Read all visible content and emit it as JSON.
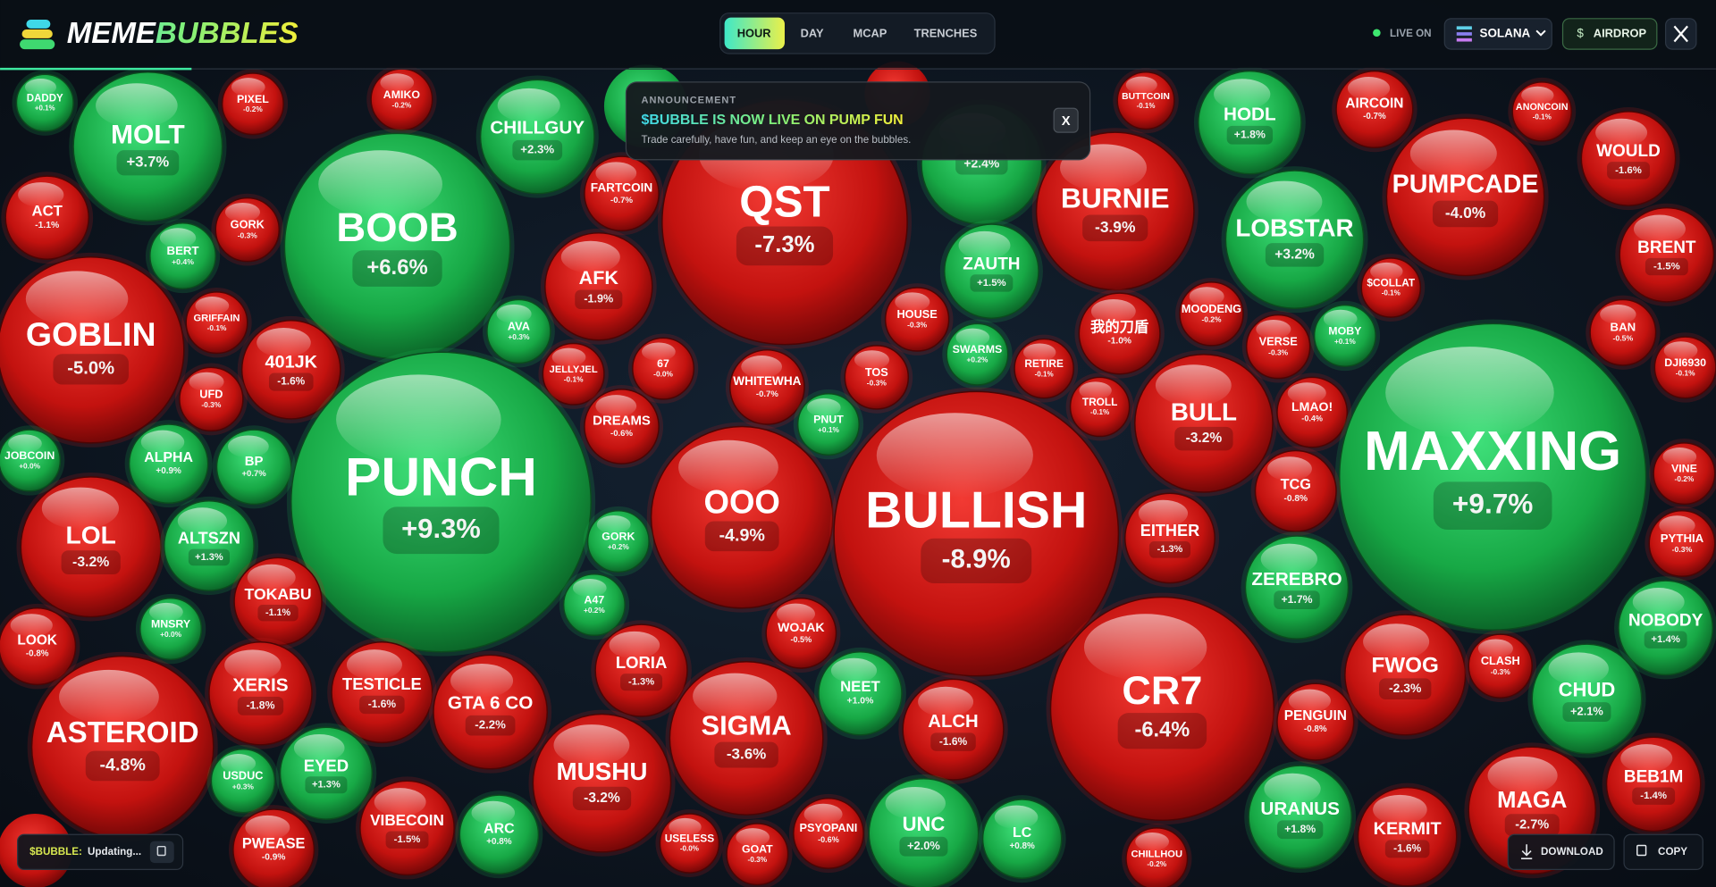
{
  "header": {
    "logo_left": "MEME",
    "logo_right": "BUBBLES",
    "tabs": [
      "HOUR",
      "DAY",
      "MCAP",
      "TRENCHES"
    ],
    "live": "LIVE ON",
    "chain": "SOLANA",
    "airdrop": "AIRDROP"
  },
  "announcement": {
    "label": "ANNOUNCEMENT",
    "title": "$BUBBLE IS NOW LIVE ON PUMP FUN",
    "text": "Trade carefully, have fun, and keep an eye on the bubbles.",
    "close": "X"
  },
  "bubbles": [
    {
      "name": "DADDY",
      "change": "+0.1%"
    },
    {
      "name": "MOLT",
      "change": "+3.7%"
    },
    {
      "name": "PIXEL",
      "change": "-0.2%"
    },
    {
      "name": "AMIKO",
      "change": "-0.2%"
    },
    {
      "name": "CHILLGUY",
      "change": "+2.3%"
    },
    {
      "name": "FARTCOIN",
      "change": "-0.7%"
    },
    {
      "name": "QST",
      "change": "-7.3%"
    },
    {
      "change": "+2.4%"
    },
    {
      "name": "BUTTCOIN",
      "change": "-0.1%"
    },
    {
      "name": "HODL",
      "change": "+1.8%"
    },
    {
      "name": "AIRCOIN",
      "change": "-0.7%"
    },
    {
      "name": "ANONCOIN",
      "change": "-0.1%"
    },
    {
      "name": "WOULD",
      "change": "-1.6%"
    },
    {
      "name": "ACT",
      "change": "-1.1%"
    },
    {
      "name": "GORK",
      "change": "-0.3%"
    },
    {
      "name": "BOOB",
      "change": "+6.6%"
    },
    {
      "name": "BURNIE",
      "change": "-3.9%"
    },
    {
      "name": "LOBSTAR",
      "change": "+3.2%"
    },
    {
      "name": "PUMPCADE",
      "change": "-4.0%"
    },
    {
      "name": "BERT",
      "change": "+0.4%"
    },
    {
      "name": "AFK",
      "change": "-1.9%"
    },
    {
      "name": "ZAUTH",
      "change": "+1.5%"
    },
    {
      "name": "BRENT",
      "change": "-1.5%"
    },
    {
      "name": "GOBLIN",
      "change": "-5.0%"
    },
    {
      "name": "GRIFFAIN",
      "change": "-0.1%"
    },
    {
      "name": "401JK",
      "change": "-1.6%"
    },
    {
      "name": "AVA",
      "change": "+0.3%"
    },
    {
      "name": "HOUSE",
      "change": "-0.3%"
    },
    {
      "name": "我的刀盾",
      "change": "-1.0%"
    },
    {
      "name": "MOODENG",
      "change": "-0.2%"
    },
    {
      "name": "$COLLAT",
      "change": "-0.1%"
    },
    {
      "name": "BAN",
      "change": "-0.5%"
    },
    {
      "name": "SWARMS",
      "change": "+0.2%"
    },
    {
      "name": "RETIRE",
      "change": "-0.1%"
    },
    {
      "name": "VERSE",
      "change": "-0.3%"
    },
    {
      "name": "MOBY",
      "change": "+0.1%"
    },
    {
      "name": "DJI6930",
      "change": "-0.1%"
    },
    {
      "name": "JELLYJEL",
      "change": "-0.1%"
    },
    {
      "name": "67",
      "change": "-0.0%"
    },
    {
      "name": "WHITEWHA",
      "change": "-0.7%"
    },
    {
      "name": "TOS",
      "change": "-0.3%"
    },
    {
      "name": "UFD",
      "change": "-0.3%"
    },
    {
      "name": "DREAMS",
      "change": "-0.6%"
    },
    {
      "name": "PNUT",
      "change": "+0.1%"
    },
    {
      "name": "TROLL",
      "change": "-0.1%"
    },
    {
      "name": "BULL",
      "change": "-3.2%"
    },
    {
      "name": "LMAO!",
      "change": "-0.4%"
    },
    {
      "name": "MAXXING",
      "change": "+9.7%"
    },
    {
      "name": "JOBCOIN",
      "change": "+0.0%"
    },
    {
      "name": "ALPHA",
      "change": "+0.9%"
    },
    {
      "name": "BP",
      "change": "+0.7%"
    },
    {
      "name": "PUNCH",
      "change": "+9.3%"
    },
    {
      "name": "OOO",
      "change": "-4.9%"
    },
    {
      "name": "BULLISH",
      "change": "-8.9%"
    },
    {
      "name": "VINE",
      "change": "-0.2%"
    },
    {
      "name": "TCG",
      "change": "-0.8%"
    },
    {
      "name": "LOL",
      "change": "-3.2%"
    },
    {
      "name": "ALTSZN",
      "change": "+1.3%"
    },
    {
      "name": "GORK",
      "change": "+0.2%"
    },
    {
      "name": "EITHER",
      "change": "-1.3%"
    },
    {
      "name": "PYTHIA",
      "change": "-0.3%"
    },
    {
      "name": "ZEREBRO",
      "change": "+1.7%"
    },
    {
      "name": "TOKABU",
      "change": "-1.1%"
    },
    {
      "name": "A47",
      "change": "+0.2%"
    },
    {
      "name": "MNSRY",
      "change": "+0.0%"
    },
    {
      "name": "NOBODY",
      "change": "+1.4%"
    },
    {
      "name": "LOOK",
      "change": "-0.8%"
    },
    {
      "name": "WOJAK",
      "change": "-0.5%"
    },
    {
      "name": "LORIA",
      "change": "-1.3%"
    },
    {
      "name": "FWOG",
      "change": "-2.3%"
    },
    {
      "name": "CLASH",
      "change": "-0.3%"
    },
    {
      "name": "XERIS",
      "change": "-1.8%"
    },
    {
      "name": "TESTICLE",
      "change": "-1.6%"
    },
    {
      "name": "GTA 6 CO",
      "change": "-2.2%"
    },
    {
      "name": "NEET",
      "change": "+1.0%"
    },
    {
      "name": "CR7",
      "change": "-6.4%"
    },
    {
      "name": "CHUD",
      "change": "+2.1%"
    },
    {
      "name": "SIGMA",
      "change": "-3.6%"
    },
    {
      "name": "ALCH",
      "change": "-1.6%"
    },
    {
      "name": "PENGUIN",
      "change": "-0.8%"
    },
    {
      "name": "ASTEROID",
      "change": "-4.8%"
    },
    {
      "name": "EYED",
      "change": "+1.3%"
    },
    {
      "name": "MUSHU",
      "change": "-3.2%"
    },
    {
      "name": "USDUC",
      "change": "+0.3%"
    },
    {
      "name": "BEB1M",
      "change": "-1.4%"
    },
    {
      "name": "MAGA",
      "change": "-2.7%"
    },
    {
      "name": "URANUS",
      "change": "+1.8%"
    },
    {
      "name": "KERMIT",
      "change": "-1.6%"
    },
    {
      "name": "VIBECOIN",
      "change": "-1.5%"
    },
    {
      "name": "ARC",
      "change": "+0.8%"
    },
    {
      "name": "UNC",
      "change": "+2.0%"
    },
    {
      "name": "LC",
      "change": "+0.8%"
    },
    {
      "name": "PWEASE",
      "change": "-0.9%"
    },
    {
      "name": "PSYOPANI",
      "change": "-0.6%"
    },
    {
      "name": "USELESS",
      "change": "-0.0%"
    },
    {
      "name": "GOAT",
      "change": "-0.3%"
    },
    {
      "name": "CHILLHOU",
      "change": "-0.2%"
    }
  ],
  "footer": {
    "token": "$BUBBLE:",
    "status": "Updating...",
    "download": "DOWNLOAD",
    "copy": "COPY"
  }
}
